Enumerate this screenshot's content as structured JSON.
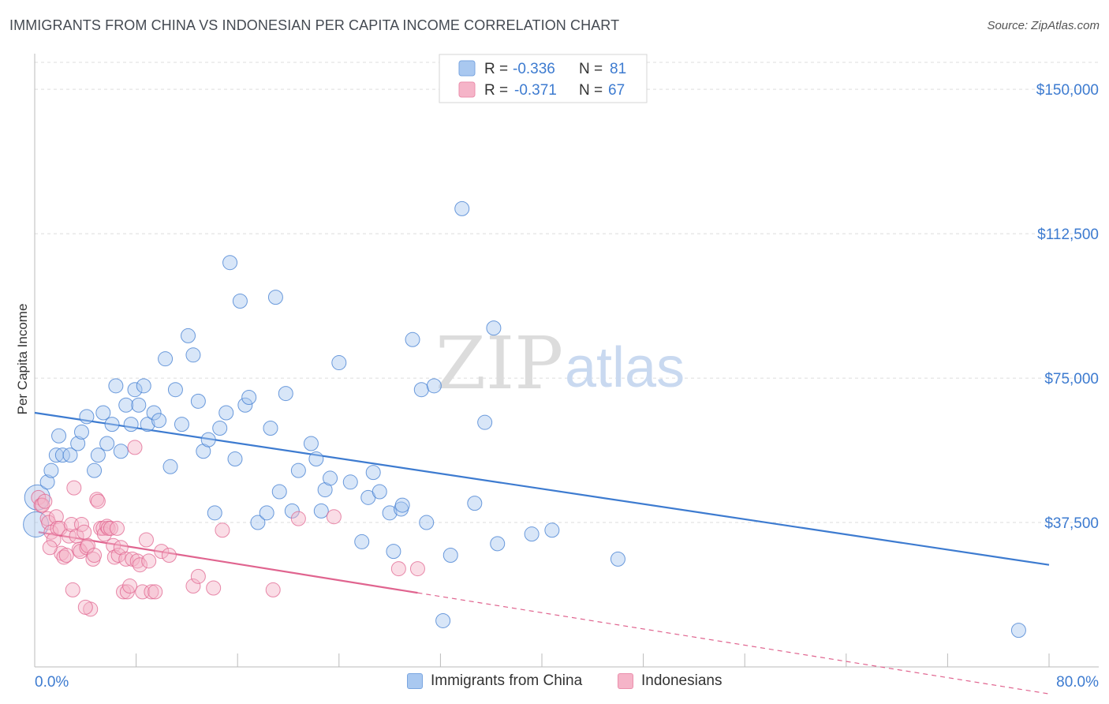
{
  "title": "IMMIGRANTS FROM CHINA VS INDONESIAN PER CAPITA INCOME CORRELATION CHART",
  "source": "Source: ZipAtlas.com",
  "watermark": {
    "part1": "ZIP",
    "part2": "atlas"
  },
  "colors": {
    "blue": "#3d7bd0",
    "blue_fill": "#a9c8f0",
    "pink": "#e0648f",
    "pink_fill": "#f5b4c8",
    "grid": "#dddddd"
  },
  "legend": {
    "rows": [
      {
        "r_label": "R =",
        "r_value": "-0.336",
        "n_label": "N =",
        "n_value": "81"
      },
      {
        "r_label": "R =",
        "r_value": "-0.371",
        "n_label": "N =",
        "n_value": "67"
      }
    ]
  },
  "bottom_legend": {
    "series1": "Immigrants from China",
    "series2": "Indonesians"
  },
  "chart_data": {
    "type": "scatter",
    "title": "IMMIGRANTS FROM CHINA VS INDONESIAN PER CAPITA INCOME CORRELATION CHART",
    "xlabel": "",
    "ylabel": "Per Capita Income",
    "xlim": [
      0,
      80
    ],
    "ylim": [
      0,
      157000
    ],
    "x_tick_labels": [
      "0.0%",
      "80.0%"
    ],
    "y_ticks": [
      37500,
      75000,
      112500,
      150000
    ],
    "y_tick_labels": [
      "$37,500",
      "$75,000",
      "$112,500",
      "$150,000"
    ],
    "series": [
      {
        "name": "Immigrants from China",
        "color": "#3d7bd0",
        "trend": {
          "x0": 0,
          "y0": 66000,
          "x1": 80,
          "y1": 26500,
          "solid_to": 80
        },
        "points": [
          [
            0.1,
            37000
          ],
          [
            0.2,
            44000
          ],
          [
            1.0,
            48000
          ],
          [
            1.3,
            51000
          ],
          [
            1.7,
            55000
          ],
          [
            1.9,
            60000
          ],
          [
            2.2,
            55000
          ],
          [
            2.8,
            55000
          ],
          [
            3.4,
            58000
          ],
          [
            3.7,
            61000
          ],
          [
            4.1,
            65000
          ],
          [
            4.7,
            51000
          ],
          [
            5.0,
            55000
          ],
          [
            5.4,
            66000
          ],
          [
            5.7,
            58000
          ],
          [
            6.1,
            63000
          ],
          [
            6.4,
            73000
          ],
          [
            6.8,
            56000
          ],
          [
            7.2,
            68000
          ],
          [
            7.6,
            63000
          ],
          [
            7.9,
            72000
          ],
          [
            8.2,
            68000
          ],
          [
            8.6,
            73000
          ],
          [
            8.9,
            63000
          ],
          [
            9.4,
            66000
          ],
          [
            9.8,
            64000
          ],
          [
            10.3,
            80000
          ],
          [
            10.7,
            52000
          ],
          [
            11.1,
            72000
          ],
          [
            11.6,
            63000
          ],
          [
            12.1,
            86000
          ],
          [
            12.5,
            81000
          ],
          [
            12.9,
            69000
          ],
          [
            13.3,
            56000
          ],
          [
            13.7,
            59000
          ],
          [
            14.2,
            40000
          ],
          [
            14.6,
            62000
          ],
          [
            15.1,
            66000
          ],
          [
            15.4,
            105000
          ],
          [
            15.8,
            54000
          ],
          [
            16.2,
            95000
          ],
          [
            16.6,
            68000
          ],
          [
            16.9,
            70000
          ],
          [
            17.6,
            37500
          ],
          [
            18.3,
            40000
          ],
          [
            18.6,
            62000
          ],
          [
            19.0,
            96000
          ],
          [
            19.3,
            45500
          ],
          [
            19.8,
            71000
          ],
          [
            20.3,
            40500
          ],
          [
            20.8,
            51000
          ],
          [
            21.8,
            58000
          ],
          [
            22.2,
            54000
          ],
          [
            22.6,
            40500
          ],
          [
            22.9,
            46000
          ],
          [
            23.3,
            49000
          ],
          [
            24.0,
            79000
          ],
          [
            24.9,
            48000
          ],
          [
            25.8,
            32500
          ],
          [
            26.3,
            44000
          ],
          [
            26.7,
            50500
          ],
          [
            27.2,
            45500
          ],
          [
            28.0,
            40000
          ],
          [
            28.3,
            30000
          ],
          [
            28.9,
            41000
          ],
          [
            29.0,
            42000
          ],
          [
            29.8,
            85000
          ],
          [
            30.5,
            72000
          ],
          [
            30.9,
            37500
          ],
          [
            31.5,
            73000
          ],
          [
            32.2,
            12000
          ],
          [
            32.8,
            29000
          ],
          [
            33.7,
            119000
          ],
          [
            34.7,
            42500
          ],
          [
            35.5,
            63500
          ],
          [
            36.2,
            88000
          ],
          [
            36.5,
            32000
          ],
          [
            39.2,
            34500
          ],
          [
            40.8,
            35500
          ],
          [
            46.0,
            28000
          ],
          [
            77.6,
            9500
          ]
        ]
      },
      {
        "name": "Indonesians",
        "color": "#e0648f",
        "trend": {
          "x0": 0.3,
          "y0": 35000,
          "x1": 80,
          "y1": -7000,
          "solid_to": 30.2
        },
        "points": [
          [
            0.3,
            44000
          ],
          [
            0.5,
            42000
          ],
          [
            0.6,
            42000
          ],
          [
            0.8,
            43000
          ],
          [
            1.0,
            38500
          ],
          [
            1.1,
            37500
          ],
          [
            1.3,
            35000
          ],
          [
            1.5,
            33000
          ],
          [
            1.7,
            39000
          ],
          [
            1.8,
            36000
          ],
          [
            2.0,
            36000
          ],
          [
            2.1,
            29500
          ],
          [
            2.3,
            28500
          ],
          [
            2.5,
            29000
          ],
          [
            2.7,
            34000
          ],
          [
            2.9,
            37000
          ],
          [
            3.0,
            20000
          ],
          [
            3.1,
            46500
          ],
          [
            3.3,
            34000
          ],
          [
            3.5,
            30500
          ],
          [
            3.6,
            30000
          ],
          [
            3.7,
            37000
          ],
          [
            3.9,
            35000
          ],
          [
            4.1,
            31000
          ],
          [
            4.2,
            31500
          ],
          [
            4.4,
            15000
          ],
          [
            4.6,
            28000
          ],
          [
            4.7,
            29000
          ],
          [
            4.9,
            43500
          ],
          [
            5.0,
            43000
          ],
          [
            5.2,
            36000
          ],
          [
            5.4,
            36000
          ],
          [
            5.5,
            34500
          ],
          [
            5.7,
            36500
          ],
          [
            5.8,
            36000
          ],
          [
            6.0,
            36000
          ],
          [
            6.2,
            31500
          ],
          [
            6.3,
            28500
          ],
          [
            6.5,
            36000
          ],
          [
            6.6,
            29000
          ],
          [
            6.8,
            31000
          ],
          [
            7.0,
            19500
          ],
          [
            7.2,
            28000
          ],
          [
            7.3,
            19500
          ],
          [
            7.5,
            21000
          ],
          [
            7.7,
            28000
          ],
          [
            7.9,
            57000
          ],
          [
            8.1,
            27500
          ],
          [
            8.3,
            26500
          ],
          [
            8.5,
            19500
          ],
          [
            8.8,
            33000
          ],
          [
            9.0,
            27500
          ],
          [
            9.2,
            19500
          ],
          [
            9.5,
            19500
          ],
          [
            10.0,
            30000
          ],
          [
            10.6,
            29000
          ],
          [
            12.5,
            21000
          ],
          [
            12.9,
            23500
          ],
          [
            14.1,
            20500
          ],
          [
            14.8,
            35500
          ],
          [
            18.8,
            20000
          ],
          [
            20.8,
            38500
          ],
          [
            23.6,
            39000
          ],
          [
            28.7,
            25500
          ],
          [
            30.2,
            25500
          ],
          [
            1.2,
            31000
          ],
          [
            4.0,
            15500
          ]
        ]
      }
    ]
  }
}
